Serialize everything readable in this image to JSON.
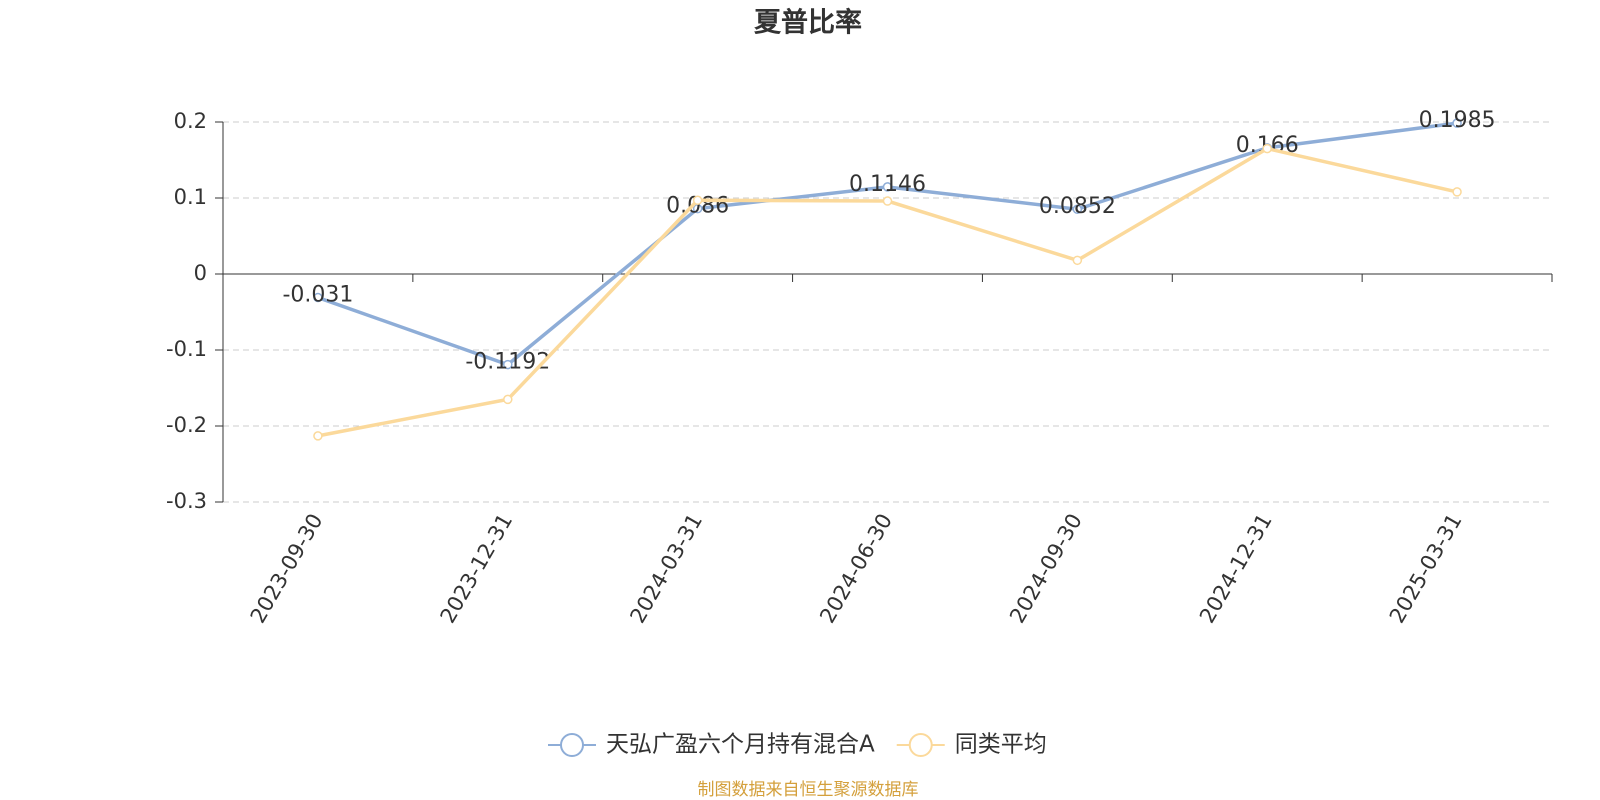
{
  "chart_data": {
    "type": "line",
    "title": "夏普比率",
    "categories": [
      "2023-09-30",
      "2023-12-31",
      "2024-03-31",
      "2024-06-30",
      "2024-09-30",
      "2024-12-31",
      "2025-03-31"
    ],
    "series": [
      {
        "name": "天弘广盈六个月持有混合A",
        "color": "#8eadd7",
        "show_labels": true,
        "values": [
          -0.031,
          -0.1192,
          0.086,
          0.1146,
          0.0852,
          0.166,
          0.1985
        ]
      },
      {
        "name": "同类平均",
        "color": "#fbd99b",
        "show_labels": false,
        "values": [
          -0.213,
          -0.165,
          0.097,
          0.096,
          0.018,
          0.165,
          0.108
        ]
      }
    ],
    "ylim": [
      -0.3,
      0.2
    ],
    "yticks": [
      -0.3,
      -0.2,
      -0.1,
      0,
      0.1,
      0.2
    ],
    "grid": true,
    "source": "制图数据来自恒生聚源数据库"
  }
}
